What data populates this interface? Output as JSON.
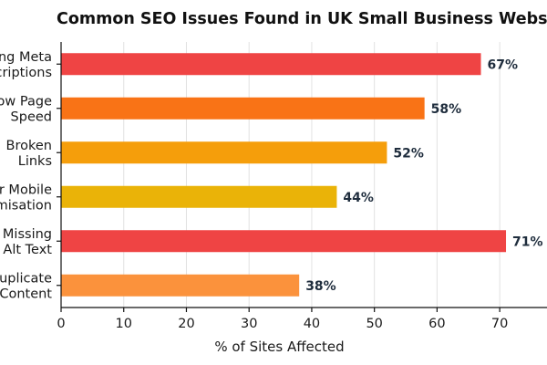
{
  "chart_data": {
    "type": "bar",
    "orientation": "horizontal",
    "title": "Common SEO Issues Found in UK Small Business Websites",
    "xlabel": "% of Sites Affected",
    "ylabel": "",
    "xlim": [
      0,
      79
    ],
    "xticks": [
      0,
      10,
      20,
      30,
      40,
      50,
      60,
      70
    ],
    "grid": "vertical",
    "value_format": "{v}%",
    "categories": [
      [
        "Missing Meta",
        "Descriptions"
      ],
      [
        "Slow Page",
        "Speed"
      ],
      [
        "Broken",
        "Links"
      ],
      [
        "Poor Mobile",
        "Optimisation"
      ],
      [
        "Missing",
        "Alt Text"
      ],
      [
        "Duplicate",
        "Content"
      ]
    ],
    "values": [
      67,
      58,
      52,
      44,
      71,
      38
    ],
    "colors": [
      "#ef4444",
      "#f97316",
      "#f59e0b",
      "#eab308",
      "#ef4444",
      "#fb923c"
    ]
  }
}
